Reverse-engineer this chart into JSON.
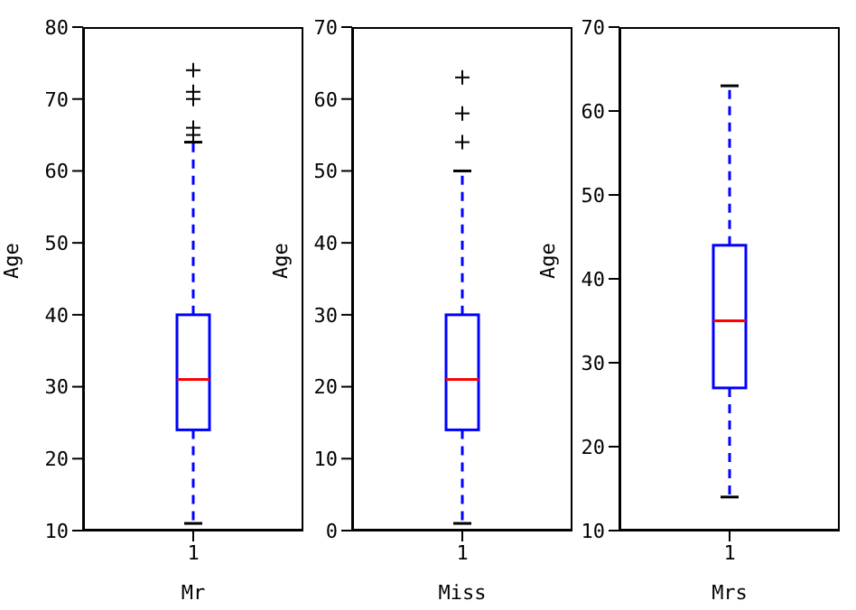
{
  "chart_data": [
    {
      "type": "box",
      "categories": [
        "1"
      ],
      "xlabel": "Mr",
      "ylabel": "Age",
      "ylim": [
        10,
        80
      ],
      "yticks": [
        10,
        20,
        30,
        40,
        50,
        60,
        70,
        80
      ],
      "boxes": [
        {
          "low": 11,
          "q1": 24,
          "median": 31,
          "q3": 40,
          "high": 64,
          "outliers": [
            65,
            66,
            70,
            71,
            74
          ]
        }
      ]
    },
    {
      "type": "box",
      "categories": [
        "1"
      ],
      "xlabel": "Miss",
      "ylabel": "Age",
      "ylim": [
        0,
        70
      ],
      "yticks": [
        0,
        10,
        20,
        30,
        40,
        50,
        60,
        70
      ],
      "boxes": [
        {
          "low": 1,
          "q1": 14,
          "median": 21,
          "q3": 30,
          "high": 50,
          "outliers": [
            54,
            58,
            63
          ]
        }
      ]
    },
    {
      "type": "box",
      "categories": [
        "1"
      ],
      "xlabel": "Mrs",
      "ylabel": "Age",
      "ylim": [
        10,
        70
      ],
      "yticks": [
        10,
        20,
        30,
        40,
        50,
        60,
        70
      ],
      "boxes": [
        {
          "low": 14,
          "q1": 27,
          "median": 35,
          "q3": 44,
          "high": 63
        }
      ]
    }
  ]
}
